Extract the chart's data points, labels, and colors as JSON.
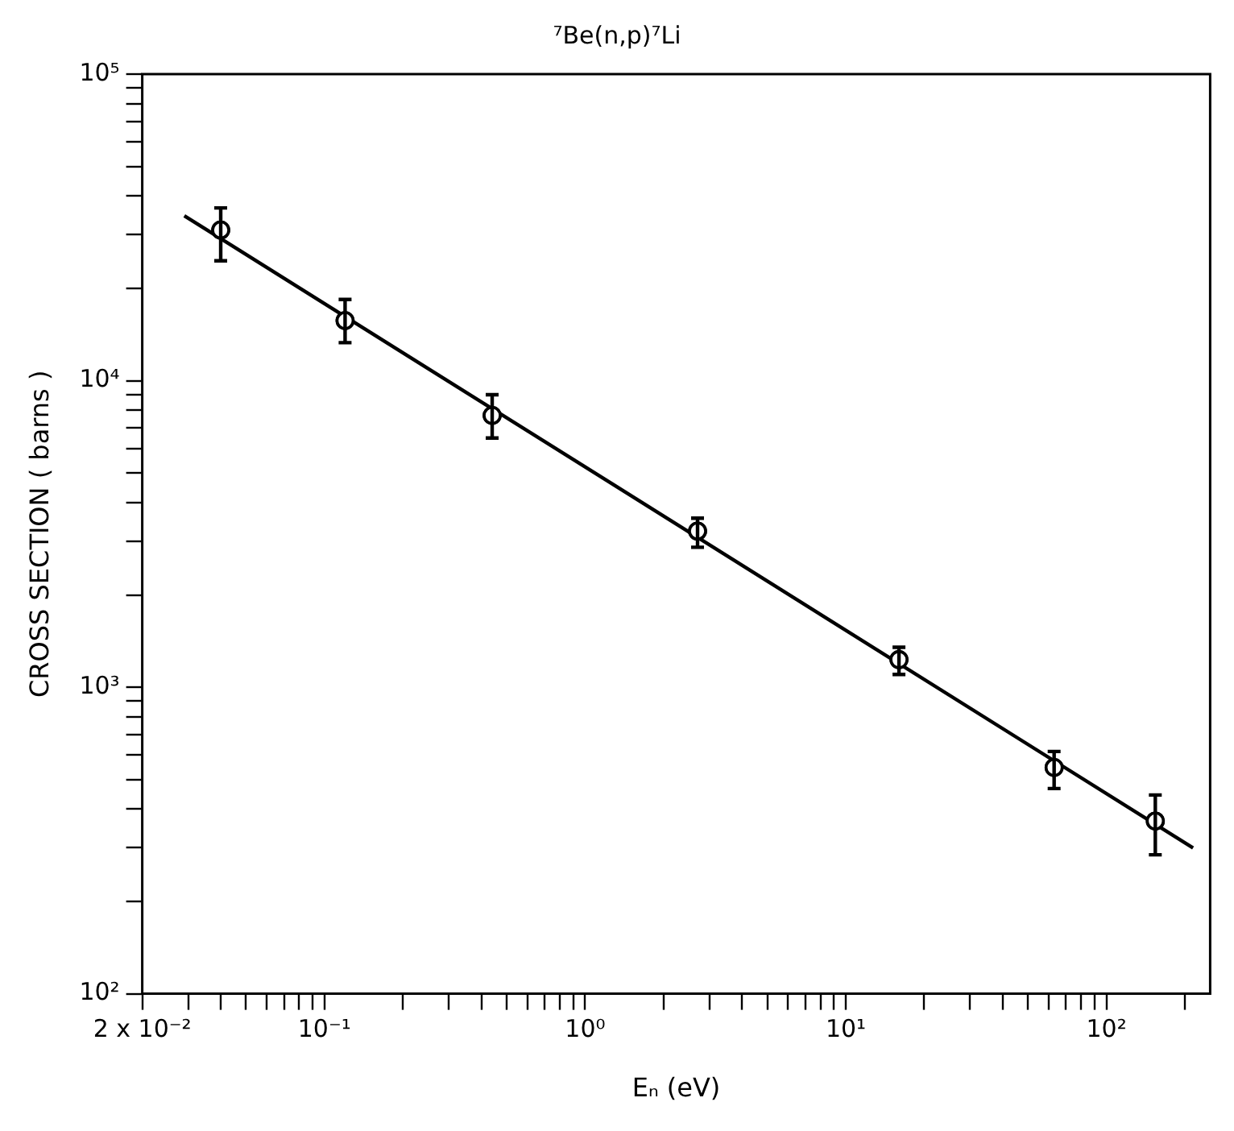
{
  "chart_data": {
    "type": "scatter",
    "title": "⁷Be(n,p)⁷Li",
    "xlabel": "Eₙ (eV)",
    "ylabel": "CROSS SECTION ( barns )",
    "log": "xy",
    "grid": false,
    "legend": false,
    "marker": "circle",
    "xlim": [
      0.02,
      250
    ],
    "ylim": [
      100,
      100000
    ],
    "xticks": [
      {
        "value": 0.02,
        "label": "2 x 10⁻²"
      },
      {
        "value": 0.03,
        "label": null
      },
      {
        "value": 0.04,
        "label": null
      },
      {
        "value": 0.05,
        "label": null
      },
      {
        "value": 0.06,
        "label": null
      },
      {
        "value": 0.07,
        "label": null
      },
      {
        "value": 0.08,
        "label": null
      },
      {
        "value": 0.09,
        "label": null
      },
      {
        "value": 0.1,
        "label": "10⁻¹"
      },
      {
        "value": 0.2,
        "label": null
      },
      {
        "value": 0.3,
        "label": null
      },
      {
        "value": 0.4,
        "label": null
      },
      {
        "value": 0.5,
        "label": null
      },
      {
        "value": 0.6,
        "label": null
      },
      {
        "value": 0.7,
        "label": null
      },
      {
        "value": 0.8,
        "label": null
      },
      {
        "value": 0.9,
        "label": null
      },
      {
        "value": 1,
        "label": "10⁰"
      },
      {
        "value": 2,
        "label": null
      },
      {
        "value": 3,
        "label": null
      },
      {
        "value": 4,
        "label": null
      },
      {
        "value": 5,
        "label": null
      },
      {
        "value": 6,
        "label": null
      },
      {
        "value": 7,
        "label": null
      },
      {
        "value": 8,
        "label": null
      },
      {
        "value": 9,
        "label": null
      },
      {
        "value": 10,
        "label": "10¹"
      },
      {
        "value": 20,
        "label": null
      },
      {
        "value": 30,
        "label": null
      },
      {
        "value": 40,
        "label": null
      },
      {
        "value": 50,
        "label": null
      },
      {
        "value": 60,
        "label": null
      },
      {
        "value": 70,
        "label": null
      },
      {
        "value": 80,
        "label": null
      },
      {
        "value": 90,
        "label": null
      },
      {
        "value": 100,
        "label": "10²"
      },
      {
        "value": 200,
        "label": null
      }
    ],
    "yticks": [
      {
        "value": 100,
        "label": "10²"
      },
      {
        "value": 200,
        "label": null
      },
      {
        "value": 300,
        "label": null
      },
      {
        "value": 400,
        "label": null
      },
      {
        "value": 500,
        "label": null
      },
      {
        "value": 600,
        "label": null
      },
      {
        "value": 700,
        "label": null
      },
      {
        "value": 800,
        "label": null
      },
      {
        "value": 900,
        "label": null
      },
      {
        "value": 1000,
        "label": "10³"
      },
      {
        "value": 2000,
        "label": null
      },
      {
        "value": 3000,
        "label": null
      },
      {
        "value": 4000,
        "label": null
      },
      {
        "value": 5000,
        "label": null
      },
      {
        "value": 6000,
        "label": null
      },
      {
        "value": 7000,
        "label": null
      },
      {
        "value": 8000,
        "label": null
      },
      {
        "value": 9000,
        "label": null
      },
      {
        "value": 10000,
        "label": "10⁴"
      },
      {
        "value": 20000,
        "label": null
      },
      {
        "value": 30000,
        "label": null
      },
      {
        "value": 40000,
        "label": null
      },
      {
        "value": 50000,
        "label": null
      },
      {
        "value": 60000,
        "label": null
      },
      {
        "value": 70000,
        "label": null
      },
      {
        "value": 80000,
        "label": null
      },
      {
        "value": 90000,
        "label": null
      },
      {
        "value": 100000,
        "label": "10⁵"
      }
    ],
    "series": [
      {
        "type": "line",
        "color": "#000000",
        "marker": "none",
        "x": [
          0.029,
          215
        ],
        "values": [
          34500,
          299
        ]
      },
      {
        "type": "scatter",
        "color": "#000000",
        "x": [
          0.04,
          0.12,
          0.44,
          2.7,
          16,
          63,
          154
        ],
        "values": [
          31000,
          15700,
          7700,
          3230,
          1230,
          547,
          366
        ],
        "errors": [
          [
            24600,
            36600
          ],
          [
            13300,
            18400
          ],
          [
            6500,
            9000
          ],
          [
            2860,
            3560
          ],
          [
            1100,
            1350
          ],
          [
            467,
            617
          ],
          [
            284,
            445
          ]
        ]
      }
    ]
  }
}
